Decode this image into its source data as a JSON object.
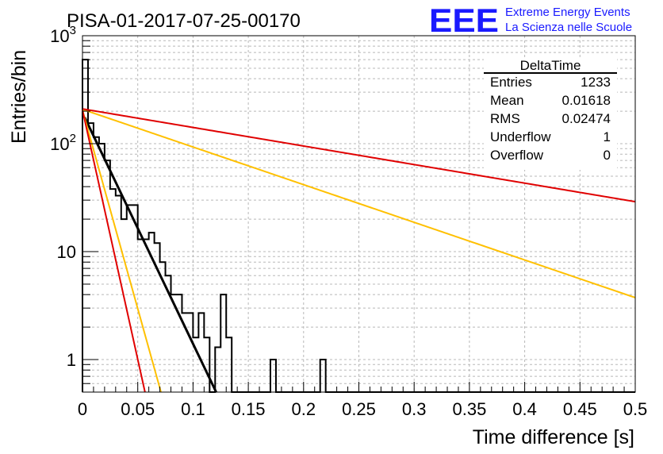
{
  "run_title": "PISA-01-2017-07-25-00170",
  "logo": {
    "mark": "EEE",
    "line1": "Extreme Energy Events",
    "line2": "La Scienza nelle Scuole",
    "color": "#1a1aff"
  },
  "stats_box": {
    "title": "DeltaTime",
    "rows": [
      {
        "label": "Entries",
        "value": "1233"
      },
      {
        "label": "Mean",
        "value": "0.01618"
      },
      {
        "label": "RMS",
        "value": "0.02474"
      },
      {
        "label": "Underflow",
        "value": "1"
      },
      {
        "label": "Overflow",
        "value": "0"
      }
    ]
  },
  "chart_data": {
    "type": "line",
    "xlabel": "Time difference [s]",
    "ylabel": "Entries/bin",
    "xlim": [
      0,
      0.5
    ],
    "ylim": [
      0.5,
      1000
    ],
    "yscale": "log",
    "grid": true,
    "x_ticks": [
      "0",
      "0.05",
      "0.1",
      "0.15",
      "0.2",
      "0.25",
      "0.3",
      "0.35",
      "0.4",
      "0.45",
      "0.5"
    ],
    "y_ticks": [
      {
        "value": 1,
        "base": "1",
        "exp": ""
      },
      {
        "value": 10,
        "base": "10",
        "exp": ""
      },
      {
        "value": 100,
        "base": "10",
        "exp": "2"
      },
      {
        "value": 1000,
        "base": "10",
        "exp": "3"
      }
    ],
    "histogram": {
      "bin_width": 0.005,
      "color": "#000000",
      "counts": [
        600,
        155,
        115,
        100,
        70,
        38,
        33,
        20,
        27,
        27,
        13,
        13,
        15,
        12,
        8,
        6,
        4,
        4,
        2.7,
        2.7,
        1.6,
        2.7,
        1.6,
        0,
        1.3,
        4,
        1.6,
        0,
        0,
        0,
        0,
        0,
        0,
        0,
        1,
        0,
        0,
        0,
        0,
        0,
        0,
        0,
        0,
        1,
        0,
        0,
        0,
        0,
        0,
        0,
        0,
        0,
        0,
        0,
        0,
        0,
        0,
        0,
        0,
        0,
        0,
        0,
        0,
        0,
        0,
        0,
        0,
        0,
        0,
        0,
        0,
        0,
        0,
        0,
        0,
        0,
        0,
        0,
        0,
        0,
        0,
        0,
        0,
        0,
        0,
        0,
        0,
        0,
        0,
        0,
        0,
        0,
        0,
        0,
        0,
        0,
        0,
        0,
        0,
        0
      ]
    },
    "fits": [
      {
        "color": "#000000",
        "width": 3,
        "x_start": 0.002,
        "y0": 175,
        "tau": 0.0203
      },
      {
        "color": "#ffc000",
        "width": 2,
        "x_start": 0.0,
        "y0": 205,
        "tau": 0.0118
      },
      {
        "color": "#e00000",
        "width": 2,
        "x_start": 0.0,
        "y0": 205,
        "tau": 0.0094
      },
      {
        "color": "#ffc000",
        "width": 2,
        "x_start": 0.0,
        "y0": 208,
        "tau": 0.1245
      },
      {
        "color": "#e00000",
        "width": 2,
        "x_start": 0.0,
        "y0": 210,
        "tau": 0.2526
      }
    ]
  }
}
